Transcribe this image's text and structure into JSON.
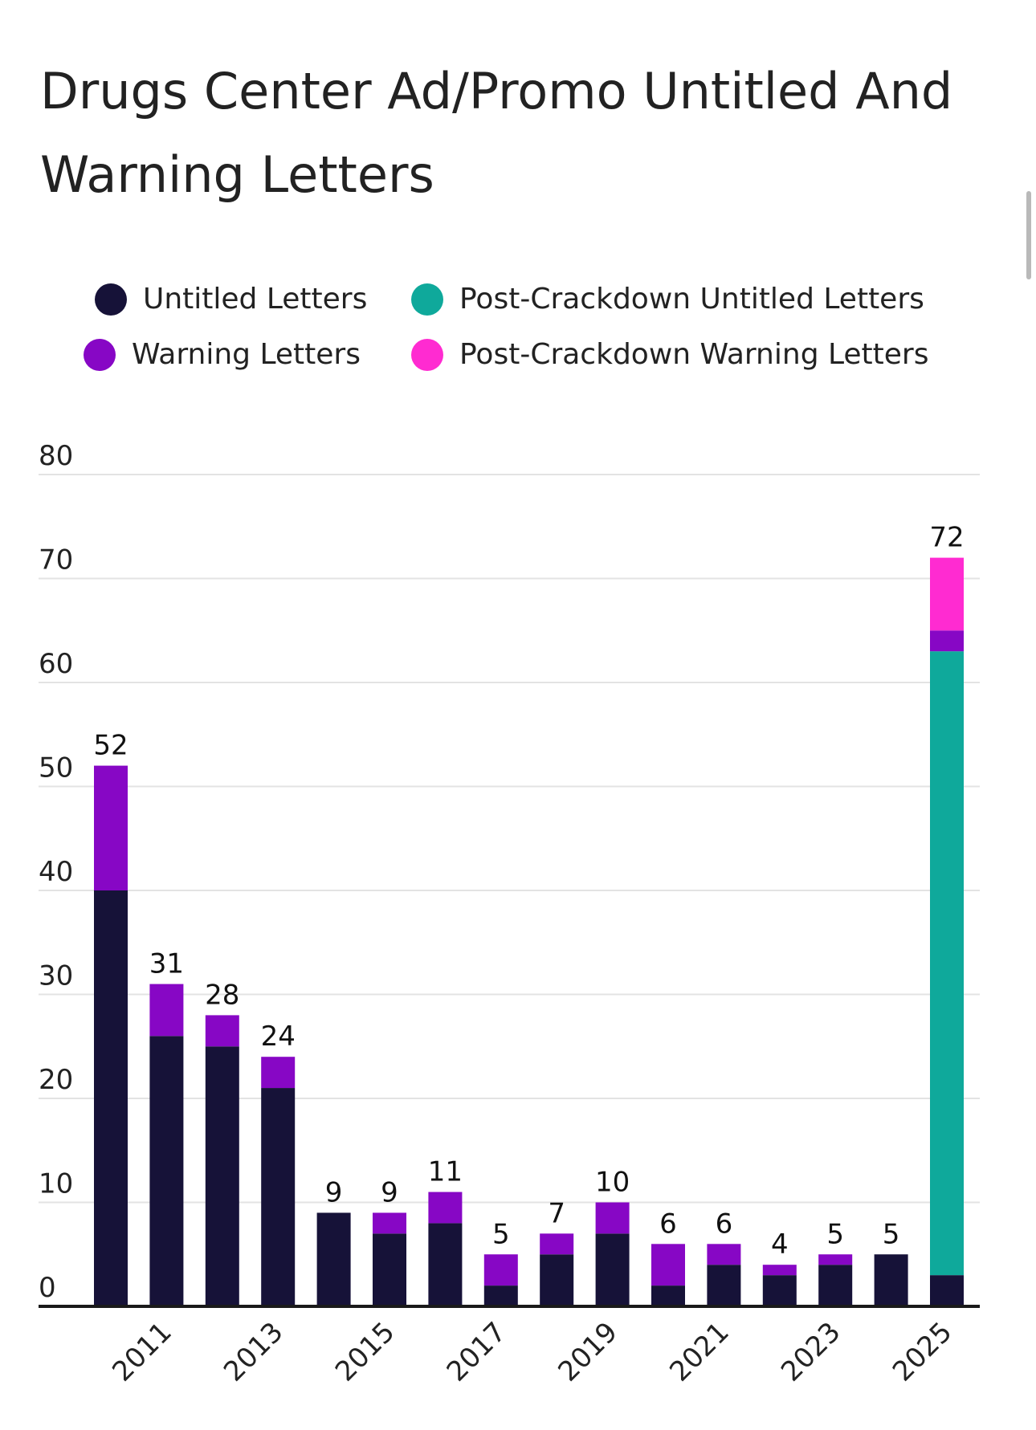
{
  "chart_data": {
    "type": "bar",
    "stacked": true,
    "title": "Drugs Center Ad/Promo Untitled And Warning Letters",
    "xlabel": "",
    "ylabel": "",
    "ylim": [
      0,
      80
    ],
    "yticks": [
      0,
      10,
      20,
      30,
      40,
      50,
      60,
      70,
      80
    ],
    "grid": true,
    "legend_position": "top",
    "categories": [
      "2010",
      "2011",
      "2012",
      "2013",
      "2014",
      "2015",
      "2016",
      "2017",
      "2018",
      "2019",
      "2020",
      "2021",
      "2022",
      "2023",
      "2024",
      "2025"
    ],
    "x_tick_labels": [
      "2011",
      "2013",
      "2015",
      "2017",
      "2019",
      "2021",
      "2023",
      "2025"
    ],
    "series": [
      {
        "name": "Untitled Letters",
        "color": "#161238",
        "values": [
          40,
          26,
          25,
          21,
          9,
          7,
          8,
          2,
          5,
          7,
          2,
          4,
          3,
          4,
          5,
          3
        ]
      },
      {
        "name": "Warning Letters",
        "color": "#8707c5",
        "values": [
          12,
          5,
          3,
          3,
          0,
          2,
          3,
          3,
          2,
          3,
          4,
          2,
          1,
          1,
          0,
          2
        ]
      },
      {
        "name": "Post-Crackdown Untitled Letters",
        "color": "#0fa99b",
        "values": [
          0,
          0,
          0,
          0,
          0,
          0,
          0,
          0,
          0,
          0,
          0,
          0,
          0,
          0,
          0,
          60
        ]
      },
      {
        "name": "Post-Crackdown Warning Letters",
        "color": "#ff2bd1",
        "values": [
          0,
          0,
          0,
          0,
          0,
          0,
          0,
          0,
          0,
          0,
          0,
          0,
          0,
          0,
          0,
          7
        ]
      }
    ],
    "stack_order": [
      0,
      2,
      1,
      3
    ],
    "totals": [
      52,
      31,
      28,
      24,
      9,
      9,
      11,
      5,
      7,
      10,
      6,
      6,
      4,
      5,
      5,
      72
    ]
  },
  "legend_layout": [
    {
      "series": 0
    },
    {
      "series": 2
    },
    {
      "series": 1
    },
    {
      "series": 3
    }
  ]
}
